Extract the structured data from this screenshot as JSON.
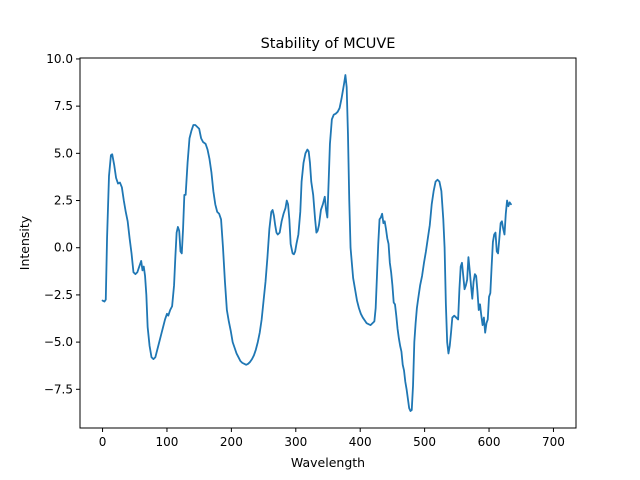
{
  "chart_data": {
    "type": "line",
    "title": "Stability of MCUVE",
    "xlabel": "Wavelength",
    "ylabel": "Intensity",
    "xlim": [
      -35,
      735
    ],
    "ylim": [
      -9.55,
      10.05
    ],
    "grid": false,
    "legend": "none",
    "x_ticks": [
      0,
      100,
      200,
      300,
      400,
      500,
      600,
      700
    ],
    "x_tick_labels": [
      "0",
      "100",
      "200",
      "300",
      "400",
      "500",
      "600",
      "700"
    ],
    "y_ticks": [
      -7.5,
      -5.0,
      -2.5,
      0.0,
      2.5,
      5.0,
      7.5,
      10.0
    ],
    "y_tick_labels": [
      "−7.5",
      "−5.0",
      "−2.5",
      "0.0",
      "2.5",
      "5.0",
      "7.5",
      "10.0"
    ],
    "series": [
      {
        "color": "#1f77b4",
        "points": [
          [
            0,
            -2.8
          ],
          [
            3,
            -2.85
          ],
          [
            5,
            -2.75
          ],
          [
            7,
            0.5
          ],
          [
            10,
            3.8
          ],
          [
            13,
            4.9
          ],
          [
            15,
            4.95
          ],
          [
            18,
            4.4
          ],
          [
            21,
            3.7
          ],
          [
            24,
            3.4
          ],
          [
            27,
            3.45
          ],
          [
            30,
            3.2
          ],
          [
            33,
            2.5
          ],
          [
            36,
            1.9
          ],
          [
            39,
            1.4
          ],
          [
            42,
            0.5
          ],
          [
            45,
            -0.3
          ],
          [
            48,
            -1.3
          ],
          [
            51,
            -1.4
          ],
          [
            54,
            -1.3
          ],
          [
            57,
            -1.0
          ],
          [
            60,
            -0.7
          ],
          [
            62,
            -1.2
          ],
          [
            64,
            -1.0
          ],
          [
            66,
            -1.5
          ],
          [
            68,
            -2.5
          ],
          [
            70,
            -4.2
          ],
          [
            73,
            -5.2
          ],
          [
            76,
            -5.8
          ],
          [
            79,
            -5.9
          ],
          [
            82,
            -5.8
          ],
          [
            85,
            -5.4
          ],
          [
            88,
            -5.0
          ],
          [
            91,
            -4.6
          ],
          [
            94,
            -4.2
          ],
          [
            97,
            -3.8
          ],
          [
            100,
            -3.5
          ],
          [
            102,
            -3.6
          ],
          [
            105,
            -3.3
          ],
          [
            108,
            -3.1
          ],
          [
            111,
            -2.0
          ],
          [
            113,
            -0.5
          ],
          [
            115,
            0.8
          ],
          [
            117,
            1.1
          ],
          [
            119,
            0.9
          ],
          [
            121,
            -0.2
          ],
          [
            123,
            -0.3
          ],
          [
            125,
            1.0
          ],
          [
            127,
            2.8
          ],
          [
            129,
            2.8
          ],
          [
            132,
            4.5
          ],
          [
            135,
            5.8
          ],
          [
            138,
            6.2
          ],
          [
            141,
            6.5
          ],
          [
            144,
            6.5
          ],
          [
            147,
            6.4
          ],
          [
            150,
            6.3
          ],
          [
            153,
            5.8
          ],
          [
            156,
            5.6
          ],
          [
            160,
            5.5
          ],
          [
            163,
            5.2
          ],
          [
            166,
            4.7
          ],
          [
            169,
            4.0
          ],
          [
            172,
            3.0
          ],
          [
            175,
            2.3
          ],
          [
            178,
            1.9
          ],
          [
            181,
            1.8
          ],
          [
            184,
            1.5
          ],
          [
            187,
            0.0
          ],
          [
            190,
            -1.8
          ],
          [
            193,
            -3.3
          ],
          [
            196,
            -3.9
          ],
          [
            199,
            -4.4
          ],
          [
            202,
            -5.0
          ],
          [
            205,
            -5.3
          ],
          [
            208,
            -5.6
          ],
          [
            211,
            -5.8
          ],
          [
            214,
            -6.0
          ],
          [
            217,
            -6.1
          ],
          [
            220,
            -6.15
          ],
          [
            223,
            -6.2
          ],
          [
            226,
            -6.15
          ],
          [
            229,
            -6.05
          ],
          [
            232,
            -5.9
          ],
          [
            235,
            -5.7
          ],
          [
            238,
            -5.4
          ],
          [
            241,
            -5.0
          ],
          [
            244,
            -4.5
          ],
          [
            247,
            -3.8
          ],
          [
            250,
            -2.8
          ],
          [
            253,
            -1.8
          ],
          [
            256,
            -0.5
          ],
          [
            259,
            1.0
          ],
          [
            262,
            1.9
          ],
          [
            264,
            2.0
          ],
          [
            266,
            1.7
          ],
          [
            268,
            1.2
          ],
          [
            270,
            0.8
          ],
          [
            272,
            0.7
          ],
          [
            275,
            0.8
          ],
          [
            278,
            1.4
          ],
          [
            281,
            1.8
          ],
          [
            284,
            2.1
          ],
          [
            286,
            2.5
          ],
          [
            288,
            2.3
          ],
          [
            290,
            1.5
          ],
          [
            292,
            0.2
          ],
          [
            295,
            -0.3
          ],
          [
            297,
            -0.35
          ],
          [
            299,
            -0.2
          ],
          [
            301,
            0.2
          ],
          [
            304,
            0.7
          ],
          [
            307,
            1.9
          ],
          [
            309,
            3.5
          ],
          [
            312,
            4.5
          ],
          [
            315,
            5.0
          ],
          [
            318,
            5.2
          ],
          [
            320,
            5.1
          ],
          [
            322,
            4.5
          ],
          [
            324,
            3.5
          ],
          [
            327,
            2.8
          ],
          [
            330,
            1.5
          ],
          [
            332,
            0.8
          ],
          [
            334,
            0.9
          ],
          [
            336,
            1.2
          ],
          [
            339,
            2.0
          ],
          [
            342,
            2.3
          ],
          [
            345,
            2.7
          ],
          [
            347,
            2.0
          ],
          [
            349,
            1.6
          ],
          [
            351,
            3.5
          ],
          [
            353,
            5.5
          ],
          [
            356,
            6.8
          ],
          [
            359,
            7.05
          ],
          [
            362,
            7.1
          ],
          [
            365,
            7.2
          ],
          [
            368,
            7.4
          ],
          [
            371,
            7.9
          ],
          [
            373,
            8.3
          ],
          [
            375,
            8.7
          ],
          [
            377,
            9.15
          ],
          [
            379,
            8.5
          ],
          [
            381,
            6.0
          ],
          [
            383,
            2.5
          ],
          [
            385,
            0.0
          ],
          [
            387,
            -0.8
          ],
          [
            389,
            -1.6
          ],
          [
            392,
            -2.2
          ],
          [
            395,
            -2.8
          ],
          [
            398,
            -3.2
          ],
          [
            401,
            -3.5
          ],
          [
            404,
            -3.7
          ],
          [
            407,
            -3.85
          ],
          [
            410,
            -4.0
          ],
          [
            413,
            -4.05
          ],
          [
            416,
            -4.1
          ],
          [
            419,
            -4.0
          ],
          [
            422,
            -3.9
          ],
          [
            424,
            -3.2
          ],
          [
            426,
            -1.5
          ],
          [
            428,
            0.2
          ],
          [
            430,
            1.5
          ],
          [
            432,
            1.6
          ],
          [
            434,
            1.8
          ],
          [
            436,
            1.3
          ],
          [
            438,
            1.4
          ],
          [
            440,
            1.0
          ],
          [
            442,
            0.5
          ],
          [
            444,
            0.2
          ],
          [
            446,
            -0.8
          ],
          [
            448,
            -1.3
          ],
          [
            450,
            -2.0
          ],
          [
            452,
            -2.9
          ],
          [
            454,
            -3.0
          ],
          [
            456,
            -3.6
          ],
          [
            458,
            -4.3
          ],
          [
            460,
            -4.8
          ],
          [
            462,
            -5.2
          ],
          [
            464,
            -5.5
          ],
          [
            466,
            -6.2
          ],
          [
            468,
            -6.5
          ],
          [
            470,
            -7.1
          ],
          [
            472,
            -7.5
          ],
          [
            474,
            -8.0
          ],
          [
            476,
            -8.5
          ],
          [
            478,
            -8.65
          ],
          [
            480,
            -8.6
          ],
          [
            482,
            -7.3
          ],
          [
            484,
            -5.0
          ],
          [
            486,
            -4.0
          ],
          [
            488,
            -3.2
          ],
          [
            490,
            -2.7
          ],
          [
            493,
            -2.0
          ],
          [
            496,
            -1.5
          ],
          [
            499,
            -0.8
          ],
          [
            502,
            -0.2
          ],
          [
            505,
            0.5
          ],
          [
            508,
            1.2
          ],
          [
            511,
            2.3
          ],
          [
            514,
            3.0
          ],
          [
            517,
            3.5
          ],
          [
            520,
            3.6
          ],
          [
            523,
            3.5
          ],
          [
            526,
            3.0
          ],
          [
            529,
            1.5
          ],
          [
            531,
            0.0
          ],
          [
            533,
            -3.0
          ],
          [
            535,
            -5.0
          ],
          [
            537,
            -5.6
          ],
          [
            539,
            -5.2
          ],
          [
            541,
            -4.5
          ],
          [
            543,
            -3.7
          ],
          [
            546,
            -3.6
          ],
          [
            549,
            -3.7
          ],
          [
            552,
            -3.8
          ],
          [
            554,
            -2.2
          ],
          [
            556,
            -1.0
          ],
          [
            558,
            -0.8
          ],
          [
            560,
            -1.5
          ],
          [
            562,
            -2.2
          ],
          [
            564,
            -2.0
          ],
          [
            566,
            -1.7
          ],
          [
            568,
            -0.5
          ],
          [
            570,
            -1.2
          ],
          [
            572,
            -2.0
          ],
          [
            574,
            -2.7
          ],
          [
            576,
            -1.8
          ],
          [
            578,
            -1.4
          ],
          [
            580,
            -1.5
          ],
          [
            582,
            -2.3
          ],
          [
            584,
            -3.3
          ],
          [
            586,
            -3.0
          ],
          [
            588,
            -3.6
          ],
          [
            590,
            -4.1
          ],
          [
            592,
            -3.7
          ],
          [
            594,
            -4.5
          ],
          [
            596,
            -4.0
          ],
          [
            598,
            -3.8
          ],
          [
            600,
            -2.6
          ],
          [
            602,
            -2.4
          ],
          [
            604,
            -1.0
          ],
          [
            606,
            0.3
          ],
          [
            608,
            0.7
          ],
          [
            610,
            0.8
          ],
          [
            612,
            -0.2
          ],
          [
            614,
            -0.3
          ],
          [
            616,
            0.5
          ],
          [
            618,
            1.3
          ],
          [
            620,
            1.4
          ],
          [
            622,
            1.0
          ],
          [
            624,
            0.7
          ],
          [
            626,
            1.8
          ],
          [
            628,
            2.5
          ],
          [
            630,
            2.2
          ],
          [
            632,
            2.4
          ],
          [
            634,
            2.3
          ]
        ]
      }
    ]
  }
}
